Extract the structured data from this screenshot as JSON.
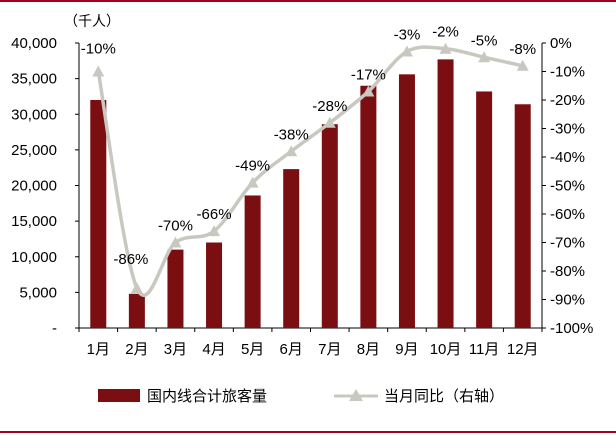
{
  "chart_data": {
    "type": "bar",
    "title": "",
    "unit_label": "（千人）",
    "categories": [
      "1月",
      "2月",
      "3月",
      "4月",
      "5月",
      "6月",
      "7月",
      "8月",
      "9月",
      "10月",
      "11月",
      "12月"
    ],
    "series": [
      {
        "name": "国内线合计旅客量",
        "type": "bar",
        "axis": "left",
        "color": "#7b0e10",
        "values": [
          32000,
          4800,
          11000,
          12000,
          18600,
          22300,
          28600,
          34000,
          35600,
          37700,
          33200,
          31400
        ]
      },
      {
        "name": "当月同比（右轴）",
        "type": "line",
        "axis": "right",
        "color": "#c8c8c0",
        "marker": "triangle",
        "values": [
          -10,
          -86,
          -70,
          -66,
          -49,
          -38,
          -28,
          -17,
          -3,
          -2,
          -5,
          -8
        ],
        "labels": [
          "-10%",
          "-86%",
          "-70%",
          "-66%",
          "-49%",
          "-38%",
          "-28%",
          "-17%",
          "-3%",
          "-2%",
          "-5%",
          "-8%"
        ]
      }
    ],
    "left_axis": {
      "ylim": [
        0,
        40000
      ],
      "ticks": [
        "-",
        "5,000",
        "10,000",
        "15,000",
        "20,000",
        "25,000",
        "30,000",
        "35,000",
        "40,000"
      ]
    },
    "right_axis": {
      "ylim": [
        -100,
        0
      ],
      "ticks": [
        "-100%",
        "-90%",
        "-80%",
        "-70%",
        "-60%",
        "-50%",
        "-40%",
        "-30%",
        "-20%",
        "-10%",
        "0%"
      ]
    },
    "legend_position": "bottom",
    "grid": false
  }
}
